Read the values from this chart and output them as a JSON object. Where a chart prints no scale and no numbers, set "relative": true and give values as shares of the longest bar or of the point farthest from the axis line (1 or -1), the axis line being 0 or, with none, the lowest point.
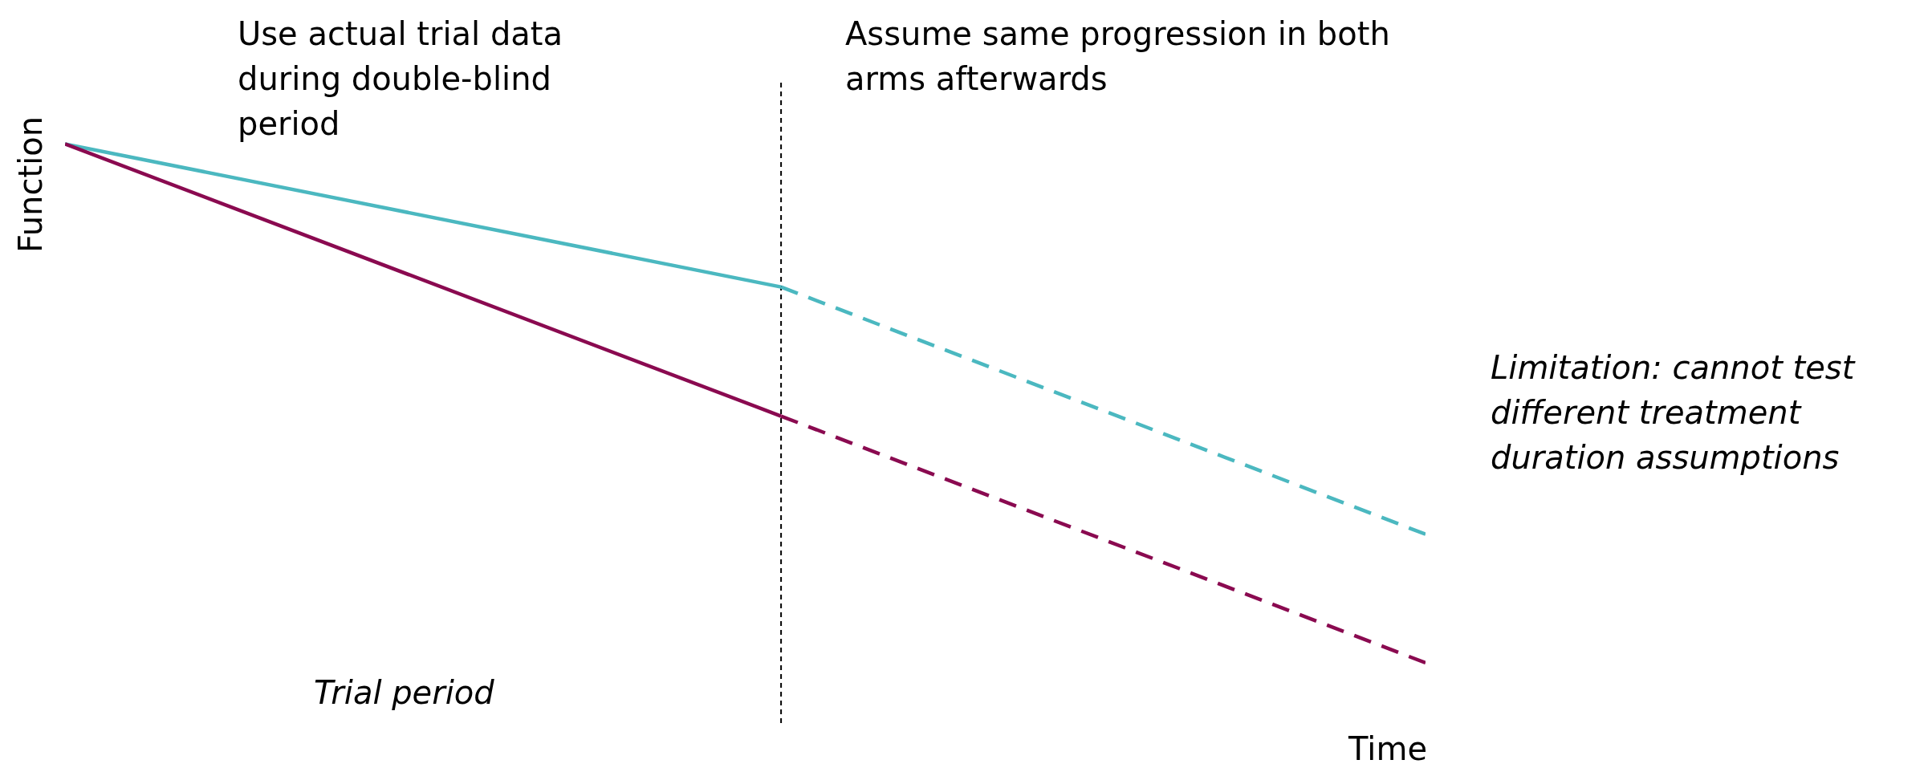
{
  "chart_data": {
    "type": "line",
    "relative": true,
    "ylabel": "Function",
    "xlabel": "Time",
    "categories": [
      null,
      null,
      null,
      null,
      null,
      null,
      null,
      null,
      null,
      null,
      null,
      null,
      null,
      null,
      null,
      null,
      null,
      null,
      null,
      null
    ],
    "series": [
      {
        "color": "#4bb8c0",
        "line_style": "solid",
        "values": [
          1,
          null,
          null,
          null,
          null,
          null,
          null,
          null,
          null,
          null,
          0.753,
          null,
          null,
          null,
          null,
          null,
          null,
          null,
          null,
          null
        ]
      },
      {
        "color": "#4bb8c0",
        "line_style": "dashed",
        "values": [
          null,
          null,
          null,
          null,
          null,
          null,
          null,
          null,
          null,
          null,
          0.753,
          null,
          null,
          null,
          null,
          null,
          null,
          null,
          null,
          0.326
        ]
      },
      {
        "color": "#8a0a50",
        "line_style": "solid",
        "values": [
          1,
          null,
          null,
          null,
          null,
          null,
          null,
          null,
          null,
          null,
          0.53,
          null,
          null,
          null,
          null,
          null,
          null,
          null,
          null,
          null
        ]
      },
      {
        "color": "#8a0a50",
        "line_style": "dashed",
        "values": [
          null,
          null,
          null,
          null,
          null,
          null,
          null,
          null,
          null,
          null,
          0.53,
          null,
          null,
          null,
          null,
          null,
          null,
          null,
          null,
          0.104
        ]
      }
    ],
    "annotations": [
      "Use actual trial data during double-blind period",
      "Assume same progression in both arms afterwards",
      "Limitation: cannot test different treatment duration assumptions",
      "Trial period"
    ]
  }
}
